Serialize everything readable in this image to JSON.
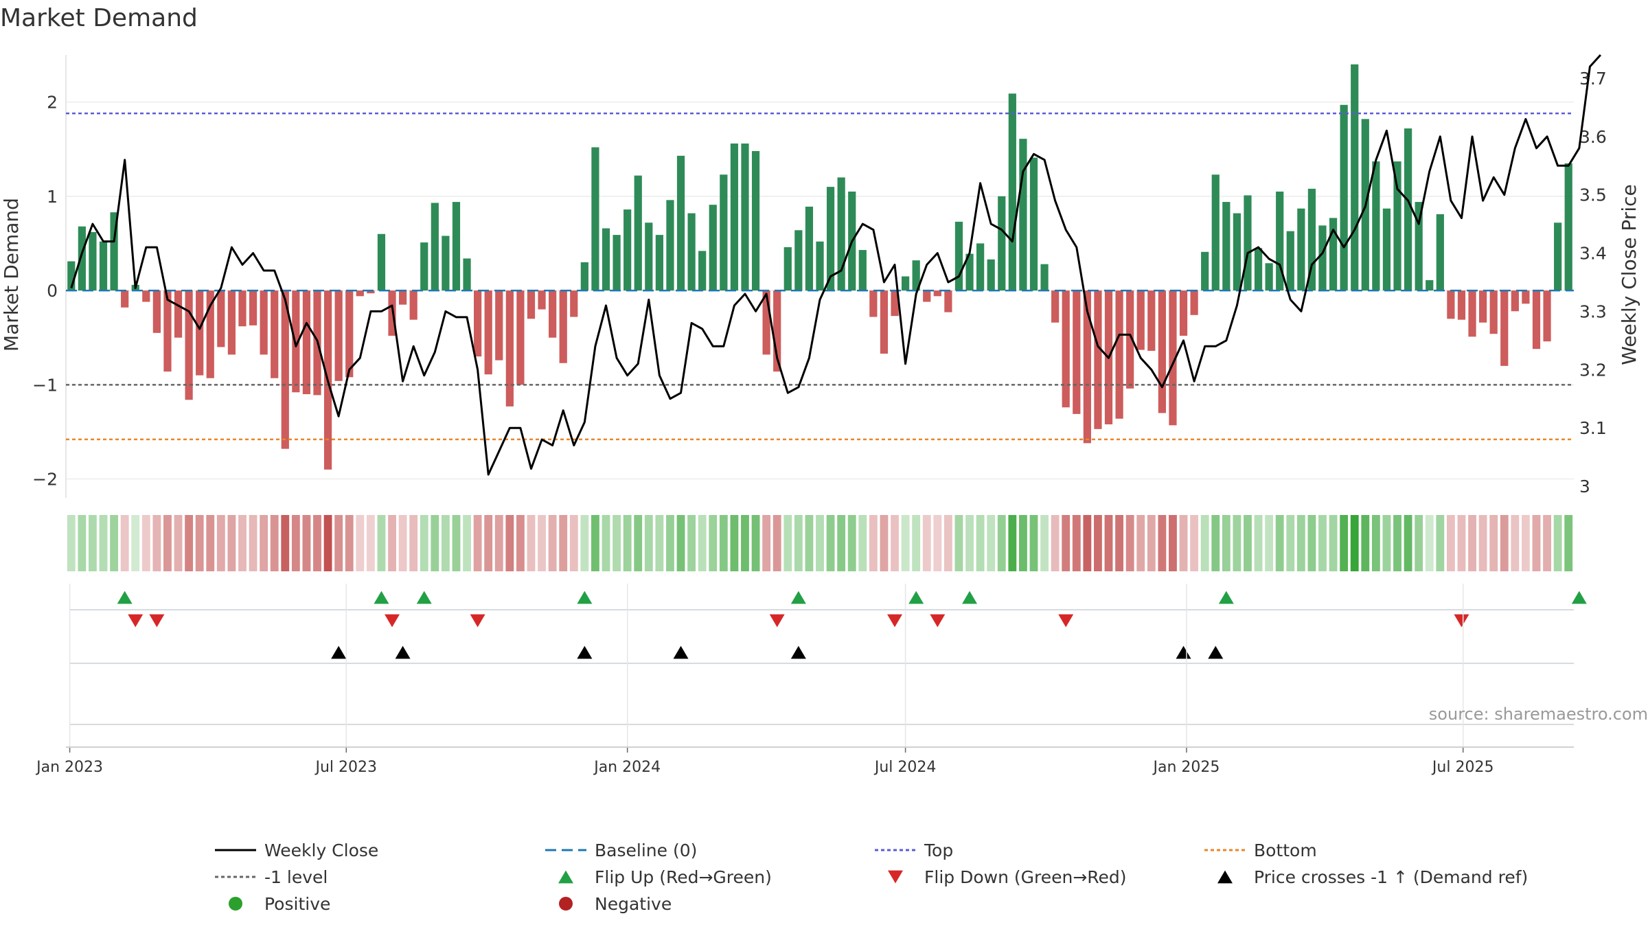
{
  "chart_data": {
    "type": "bar",
    "title": "Market Demand",
    "ylabel_left": "Market Demand",
    "ylabel_right": "Weekly Close Price",
    "source": "source: sharemaestro.com",
    "x_start": "2023-01-02",
    "x_step_days": 7,
    "x_tick_labels": [
      {
        "label": "Jan 2023",
        "date": "2023-01-01"
      },
      {
        "label": "Jul 2023",
        "date": "2023-07-01"
      },
      {
        "label": "Jan 2024",
        "date": "2024-01-01"
      },
      {
        "label": "Jul 2024",
        "date": "2024-07-01"
      },
      {
        "label": "Jan 2025",
        "date": "2025-01-01"
      },
      {
        "label": "Jul 2025",
        "date": "2025-07-01"
      }
    ],
    "y_left_ticks": [
      {
        "v": 2,
        "label": "2"
      },
      {
        "v": 1,
        "label": "1"
      },
      {
        "v": 0,
        "label": "0"
      },
      {
        "v": -1,
        "label": "−1"
      },
      {
        "v": -2,
        "label": "−2"
      }
    ],
    "y_right_ticks": [
      {
        "v": 3.7,
        "label": "3.7"
      },
      {
        "v": 3.6,
        "label": "3.6"
      },
      {
        "v": 3.5,
        "label": "3.5"
      },
      {
        "v": 3.4,
        "label": "3.4"
      },
      {
        "v": 3.3,
        "label": "3.3"
      },
      {
        "v": 3.2,
        "label": "3.2"
      },
      {
        "v": 3.1,
        "label": "3.1"
      },
      {
        "v": 3.0,
        "label": "3"
      }
    ],
    "ylim_left": [
      -2.2,
      2.5
    ],
    "ylim_right": [
      2.98,
      3.74
    ],
    "reference_lines": {
      "top": 1.88,
      "minus_one": -1.0,
      "bottom": -1.58,
      "baseline": 0
    },
    "demand": [
      0.31,
      0.68,
      0.62,
      0.52,
      0.83,
      -0.18,
      0.06,
      -0.12,
      -0.45,
      -0.86,
      -0.5,
      -1.16,
      -0.9,
      -0.93,
      -0.6,
      -0.68,
      -0.38,
      -0.37,
      -0.68,
      -0.93,
      -1.68,
      -1.08,
      -1.1,
      -1.11,
      -1.9,
      -0.96,
      -0.92,
      -0.06,
      -0.03,
      0.6,
      -0.48,
      -0.15,
      -0.31,
      0.51,
      0.93,
      0.58,
      0.94,
      0.34,
      -0.7,
      -0.89,
      -0.74,
      -1.23,
      -1.0,
      -0.3,
      -0.2,
      -0.5,
      -0.77,
      -0.28,
      0.3,
      1.52,
      0.66,
      0.59,
      0.86,
      1.22,
      0.72,
      0.59,
      0.96,
      1.43,
      0.82,
      0.42,
      0.91,
      1.23,
      1.56,
      1.56,
      1.48,
      -0.68,
      -0.86,
      0.46,
      0.64,
      0.89,
      0.52,
      1.1,
      1.2,
      1.05,
      0.43,
      -0.28,
      -0.67,
      -0.27,
      0.15,
      0.32,
      -0.12,
      -0.06,
      -0.23,
      0.73,
      0.39,
      0.5,
      0.33,
      1.0,
      2.09,
      1.61,
      1.41,
      0.28,
      -0.34,
      -1.24,
      -1.31,
      -1.62,
      -1.47,
      -1.42,
      -1.36,
      -1.04,
      -0.63,
      -0.64,
      -1.3,
      -1.43,
      -0.48,
      -0.26,
      0.41,
      1.23,
      0.94,
      0.82,
      1.01,
      0.45,
      0.29,
      1.05,
      0.63,
      0.87,
      1.08,
      0.69,
      0.77,
      1.97,
      2.4,
      1.82,
      1.37,
      0.87,
      1.37,
      1.72,
      0.94,
      0.11,
      0.81,
      -0.3,
      -0.31,
      -0.49,
      -0.34,
      -0.46,
      -0.8,
      -0.22,
      -0.14,
      -0.62,
      -0.54,
      0.72,
      1.35
    ],
    "price": [
      3.34,
      3.4,
      3.45,
      3.42,
      3.42,
      3.56,
      3.34,
      3.41,
      3.41,
      3.32,
      3.31,
      3.3,
      3.27,
      3.31,
      3.34,
      3.41,
      3.38,
      3.4,
      3.37,
      3.37,
      3.32,
      3.24,
      3.28,
      3.25,
      3.18,
      3.12,
      3.2,
      3.22,
      3.3,
      3.3,
      3.31,
      3.18,
      3.24,
      3.19,
      3.23,
      3.3,
      3.29,
      3.29,
      3.2,
      3.02,
      3.06,
      3.1,
      3.1,
      3.03,
      3.08,
      3.07,
      3.13,
      3.07,
      3.11,
      3.24,
      3.31,
      3.22,
      3.19,
      3.21,
      3.32,
      3.19,
      3.15,
      3.16,
      3.28,
      3.27,
      3.24,
      3.24,
      3.31,
      3.33,
      3.3,
      3.33,
      3.22,
      3.16,
      3.17,
      3.22,
      3.32,
      3.36,
      3.37,
      3.42,
      3.45,
      3.44,
      3.35,
      3.38,
      3.21,
      3.33,
      3.38,
      3.4,
      3.35,
      3.36,
      3.4,
      3.52,
      3.45,
      3.44,
      3.42,
      3.54,
      3.57,
      3.56,
      3.49,
      3.44,
      3.41,
      3.3,
      3.24,
      3.22,
      3.26,
      3.26,
      3.22,
      3.2,
      3.17,
      3.21,
      3.25,
      3.18,
      3.24,
      3.24,
      3.25,
      3.31,
      3.4,
      3.41,
      3.39,
      3.38,
      3.32,
      3.3,
      3.38,
      3.4,
      3.44,
      3.41,
      3.44,
      3.48,
      3.56,
      3.61,
      3.51,
      3.49,
      3.45,
      3.54,
      3.6,
      3.49,
      3.46,
      3.6,
      3.49,
      3.53,
      3.5,
      3.58,
      3.63,
      3.58,
      3.6,
      3.55,
      3.55,
      3.58,
      3.72,
      3.74
    ],
    "flip_up_idx": [
      5,
      29,
      33,
      48,
      68,
      79,
      84,
      108,
      141
    ],
    "flip_down_idx": [
      6,
      8,
      30,
      38,
      66,
      77,
      81,
      93,
      130
    ],
    "price_cross_idx": [
      25,
      31,
      48,
      57,
      68,
      104,
      107
    ],
    "legend": [
      {
        "label": "Weekly Close",
        "kind": "line",
        "color": "#000000"
      },
      {
        "label": "Baseline (0)",
        "kind": "dash",
        "color": "#1f77b4"
      },
      {
        "label": "Top",
        "kind": "dot",
        "color": "#5b5bd6"
      },
      {
        "label": "Bottom",
        "kind": "dot",
        "color": "#e8862a"
      },
      {
        "label": "-1 level",
        "kind": "dot",
        "color": "#666666"
      },
      {
        "label": "Flip Up (Red→Green)",
        "kind": "tri-up",
        "color": "#22a045"
      },
      {
        "label": "Flip Down (Green→Red)",
        "kind": "tri-down",
        "color": "#d62728"
      },
      {
        "label": "Price crosses -1 ↑ (Demand ref)",
        "kind": "tri-up",
        "color": "#000000"
      },
      {
        "label": "Positive",
        "kind": "circle",
        "color": "#2ca02c"
      },
      {
        "label": "Negative",
        "kind": "circle",
        "color": "#b22222"
      }
    ],
    "colors": {
      "positive_bar": "#2e8b57",
      "negative_bar": "#cd5c5c",
      "flip_up": "#22a045",
      "flip_down": "#d62728",
      "cross": "#000000"
    },
    "legend_position": "bottom",
    "grid": true
  }
}
